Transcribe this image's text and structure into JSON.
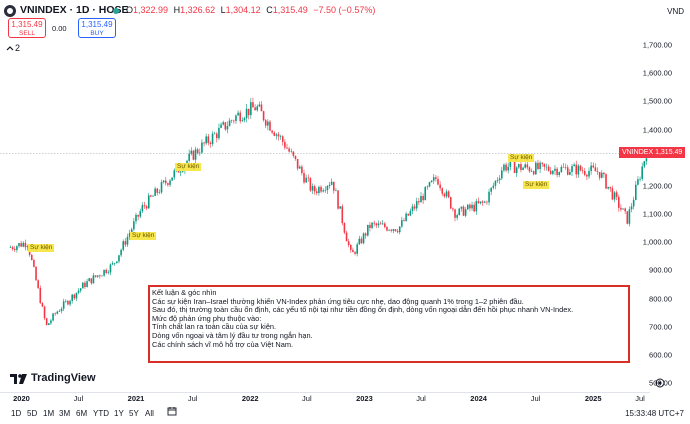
{
  "header": {
    "symbol_title": "VNINDEX · 1D · HOSE",
    "ohlc": {
      "open_label": "O",
      "open": "1,322.99",
      "high_label": "H",
      "high": "1,326.62",
      "low_label": "L",
      "low": "1,304.12",
      "close_label": "C",
      "close": "1,315.49",
      "change": "−7.50 (−0.57%)"
    },
    "currency": "VND"
  },
  "trade": {
    "sell_price": "1,315.49",
    "sell_label": "SELL",
    "spread": "0.00",
    "buy_price": "1,315.49",
    "buy_label": "BUY"
  },
  "layers": {
    "collapse_icon": "chevron-up-icon",
    "count": "2"
  },
  "price_scale": {
    "ticks": [
      "1,700.00",
      "1,600.00",
      "1,500.00",
      "1,400.00",
      "1,200.00",
      "1,100.00",
      "1,000.00",
      "900.00",
      "800.00",
      "700.00",
      "600.00",
      "500.00"
    ],
    "last_price_label": "VNINDEX",
    "last_price": "1,315.49"
  },
  "time_axis": {
    "ticks": [
      "2020",
      "Jul",
      "2021",
      "Jul",
      "2022",
      "Jul",
      "2023",
      "Jul",
      "2024",
      "Jul",
      "2025",
      "Jul"
    ]
  },
  "events": {
    "label": "Sự kiện"
  },
  "note": {
    "lines": [
      "Kết luận & góc nhìn",
      "Các sự kiện Iran–Israel thường khiến VN-Index phản ứng tiêu cực nhẹ, dao động quanh 1% trong 1–2 phiên đầu.",
      "Sau đó, thị trường toàn cầu ổn định, các yếu tố nội tại như tiền đồng ổn định, dòng vốn ngoại dẫn đến hồi phục nhanh VN-Index.",
      "Mức độ phản ứng phụ thuộc vào:",
      "Tính chất lan ra toàn cầu của sự kiện.",
      "Dòng vốn ngoại và tâm lý đầu tư trong ngắn hạn.",
      "Các chính sách vĩ mô hỗ trợ của Việt Nam."
    ]
  },
  "branding": {
    "name": "TradingView"
  },
  "toolbar": {
    "ranges": [
      "1D",
      "5D",
      "1M",
      "3M",
      "6M",
      "YTD",
      "1Y",
      "5Y",
      "All"
    ],
    "clock": "15:33:48 UTC+7"
  },
  "chart_data": {
    "type": "candlestick",
    "title": "VNINDEX · 1D · HOSE",
    "xlabel": "",
    "ylabel": "",
    "ylim": [
      500,
      1750
    ],
    "x": [
      "2019-11",
      "2020-01",
      "2020-03",
      "2020-04",
      "2020-07",
      "2020-10",
      "2021-01",
      "2021-04",
      "2021-07",
      "2021-11",
      "2022-01",
      "2022-04",
      "2022-07",
      "2022-09",
      "2022-11",
      "2023-01",
      "2023-04",
      "2023-08",
      "2023-10",
      "2024-01",
      "2024-03",
      "2024-07",
      "2024-10",
      "2025-01",
      "2025-04",
      "2025-06"
    ],
    "series": [
      {
        "values": [
          980,
          1000,
          700,
          750,
          850,
          920,
          1120,
          1230,
          1330,
          1450,
          1480,
          1350,
          1180,
          1220,
          950,
          1060,
          1050,
          1230,
          1100,
          1140,
          1270,
          1260,
          1260,
          1250,
          1080,
          1320
        ]
      }
    ],
    "last_price": 1315.49,
    "grid": false
  }
}
